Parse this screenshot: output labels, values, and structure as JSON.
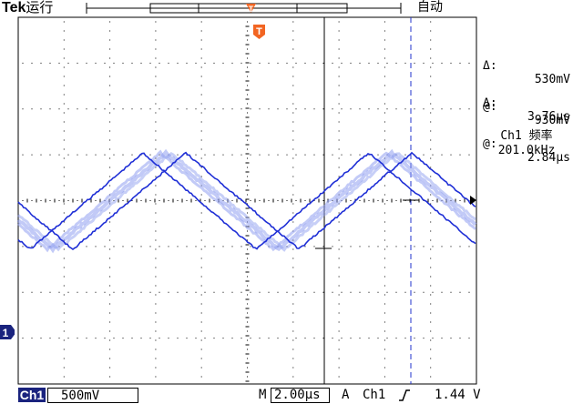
{
  "header": {
    "brand": "Tek",
    "run_state": "运行",
    "mode": "自动"
  },
  "cursor_readouts": {
    "voltage": {
      "delta_symbol": "Δ:",
      "delta_value": "530mV",
      "at_symbol": "@:",
      "at_value": "930mV"
    },
    "time": {
      "delta_symbol": "Δ:",
      "delta_value": "3.76µs",
      "at_symbol": "@:",
      "at_value": "2.84µs"
    }
  },
  "measurement": {
    "label": "Ch1 频率",
    "value": "201.0kHz"
  },
  "footer": {
    "channel": "Ch1",
    "volts_per_div": "500mV",
    "timebase_prefix": "M",
    "timebase": "2.00µs",
    "trigger_prefix": "A",
    "trigger_channel": "Ch1",
    "trigger_slope": "rising-edge-icon",
    "trigger_level": "1.44 V"
  },
  "markers": {
    "trigger_position": "T",
    "channel_ground": "1"
  },
  "colors": {
    "trace_primary": "#1f2fd6",
    "trace_secondary": "#8f9ff0",
    "cursor_dashed": "#2233cc",
    "trigger_marker": "#f26522",
    "channel_badge": "#1a237e"
  }
}
